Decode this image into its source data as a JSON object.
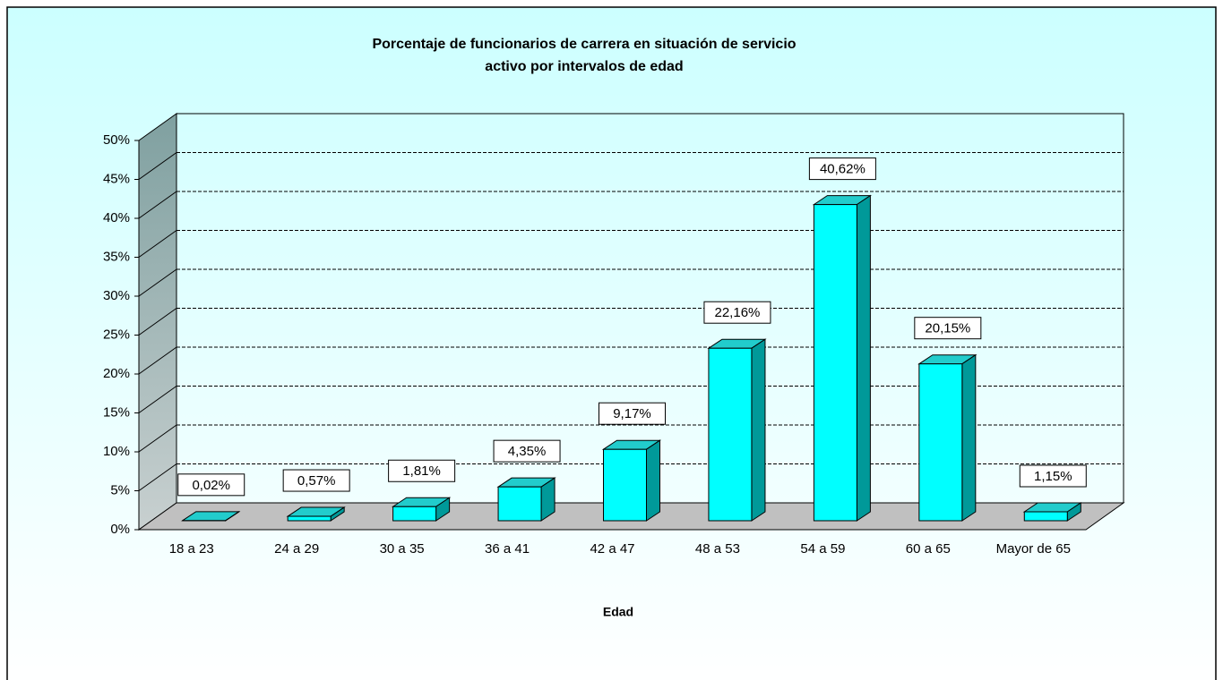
{
  "chart_data": {
    "type": "bar3d",
    "title": [
      "Porcentaje de funcionarios de carrera en situación de servicio",
      "activo por intervalos de edad"
    ],
    "x_label": "Edad",
    "categories": [
      "18 a 23",
      "24 a 29",
      "30 a 35",
      "36 a 41",
      "42 a 47",
      "48 a 53",
      "54 a 59",
      "60 a 65",
      "Mayor de 65"
    ],
    "values": [
      0.02,
      0.57,
      1.81,
      4.35,
      9.17,
      22.16,
      40.62,
      20.15,
      1.15
    ],
    "value_labels": [
      "0,02%",
      "0,57%",
      "1,81%",
      "4,35%",
      "9,17%",
      "22,16%",
      "40,62%",
      "20,15%",
      "1,15%"
    ],
    "color": "#00ffff",
    "ylim": [
      0,
      50
    ],
    "yticks": [
      {
        "value": 0,
        "label": "0%"
      },
      {
        "value": 5,
        "label": "5%"
      },
      {
        "value": 10,
        "label": "10%"
      },
      {
        "value": 15,
        "label": "15%"
      },
      {
        "value": 20,
        "label": "20%"
      },
      {
        "value": 25,
        "label": "25%"
      },
      {
        "value": 30,
        "label": "30%"
      },
      {
        "value": 35,
        "label": "35%"
      },
      {
        "value": 40,
        "label": "40%"
      },
      {
        "value": 45,
        "label": "45%"
      },
      {
        "value": 50,
        "label": "50%"
      }
    ],
    "grid": true
  }
}
